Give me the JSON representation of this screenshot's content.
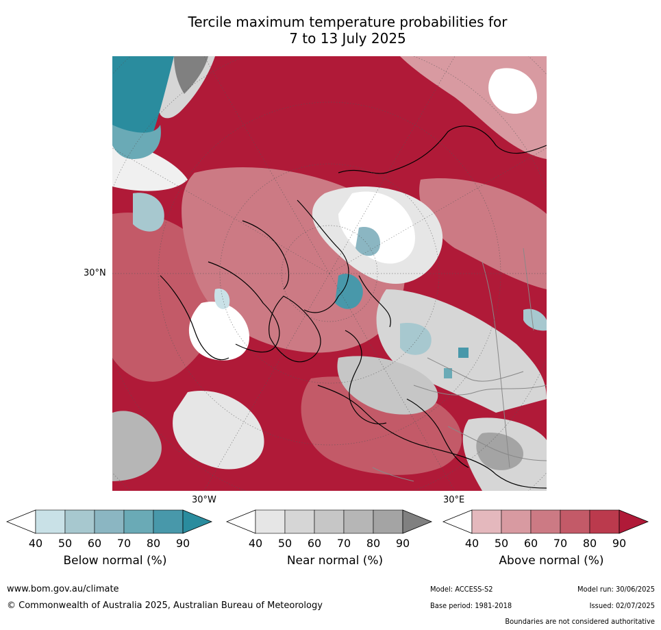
{
  "title": "Tercile maximum temperature probabilities for\n7 to 13 July 2025",
  "map": {
    "lat_label": "30°N",
    "lon_label_w": "30°W",
    "lon_label_e": "30°E",
    "region": "Northern Hemisphere polar view centred on Europe/Arctic"
  },
  "colorbars": [
    {
      "label": "Below normal (%)",
      "ticks": [
        "40",
        "50",
        "60",
        "70",
        "80",
        "90"
      ],
      "colors": [
        "#ffffff",
        "#c9e1e7",
        "#a7c8cf",
        "#8bb6c2",
        "#6aaab6",
        "#4898aa",
        "#2a8c9e"
      ]
    },
    {
      "label": "Near normal (%)",
      "ticks": [
        "40",
        "50",
        "60",
        "70",
        "80",
        "90"
      ],
      "colors": [
        "#ffffff",
        "#e6e6e6",
        "#d6d6d6",
        "#c6c6c6",
        "#b6b6b6",
        "#a4a4a4",
        "#808080"
      ]
    },
    {
      "label": "Above normal (%)",
      "ticks": [
        "40",
        "50",
        "60",
        "70",
        "80",
        "90"
      ],
      "colors": [
        "#ffffff",
        "#e4b8bd",
        "#d89aa1",
        "#cc7a84",
        "#c35a68",
        "#bb3a4d",
        "#b01a38"
      ]
    }
  ],
  "footer": {
    "url": "www.bom.gov.au/climate",
    "copyright": "© Commonwealth of Australia 2025, Australian Bureau of Meteorology",
    "model": "Model: ACCESS-S2",
    "base_period": "Base period: 1981-2018",
    "model_run": "Model run: 30/06/2025",
    "issued": "Issued: 02/07/2025",
    "boundaries": "Boundaries are not considered authoritative"
  }
}
